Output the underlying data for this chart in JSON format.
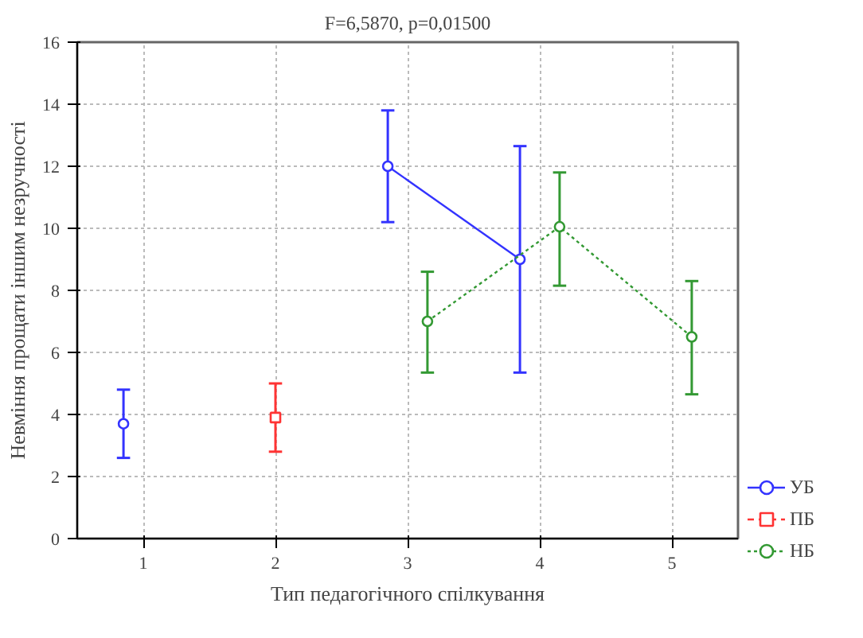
{
  "chart_data": {
    "type": "line",
    "title": "F=6,5870, p=0,01500",
    "xlabel": "Тип педагогічного спілкування",
    "ylabel": "Невміння прощати іншим незручності",
    "xlim": [
      0.5,
      5.5
    ],
    "xticks": [
      1,
      2,
      3,
      4,
      5
    ],
    "ylim": [
      0,
      16
    ],
    "yticks": [
      0,
      2,
      4,
      6,
      8,
      10,
      12,
      14,
      16
    ],
    "grid": true,
    "legend": "bottom right",
    "series": [
      {
        "name": "УБ",
        "color": "#3333ff",
        "marker": "circle",
        "line_style": "solid",
        "x": [
          0.85,
          1.85,
          2.85,
          3.85
        ],
        "values": [
          3.7,
          null,
          12.0,
          9.0
        ],
        "errors": [
          [
            2.6,
            4.8
          ],
          null,
          [
            10.2,
            13.8
          ],
          [
            5.35,
            12.65
          ]
        ]
      },
      {
        "name": "ПБ",
        "color": "#ff3333",
        "marker": "square",
        "line_style": "dashed",
        "x": [
          2.0
        ],
        "values": [
          3.9
        ],
        "errors": [
          [
            2.8,
            5.0
          ]
        ]
      },
      {
        "name": "НБ",
        "color": "#339933",
        "marker": "circle",
        "line_style": "dotted",
        "x": [
          3.15,
          4.15,
          5.15
        ],
        "values": [
          7.0,
          10.05,
          6.5
        ],
        "errors": [
          [
            5.35,
            8.6
          ],
          [
            8.15,
            11.8
          ],
          [
            4.65,
            8.3
          ]
        ]
      }
    ]
  }
}
